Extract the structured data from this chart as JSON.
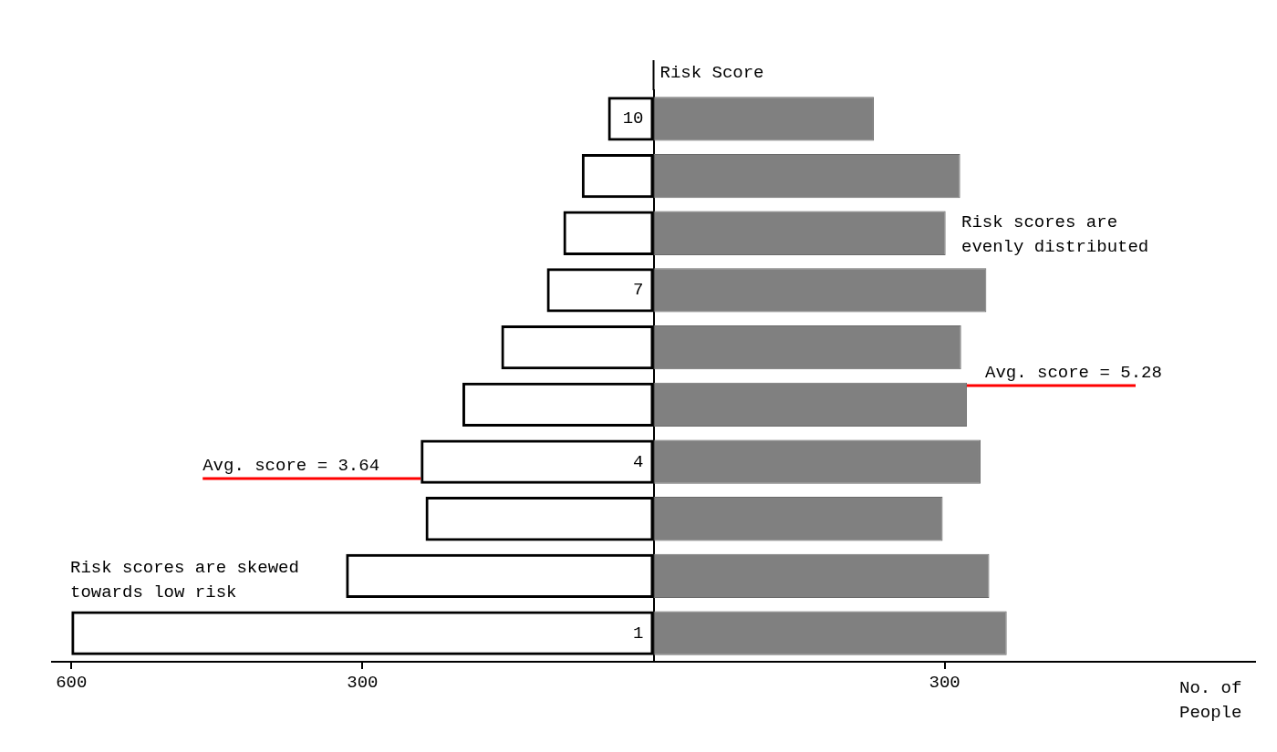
{
  "chart_data": {
    "type": "bar",
    "orientation": "horizontal",
    "stacked": true,
    "categories": [
      "10",
      null,
      null,
      "7",
      null,
      null,
      "4",
      null,
      null,
      "1"
    ],
    "series": [
      {
        "color": "#000000",
        "values": [
          -47,
          -74,
          -93,
          -110,
          -157,
          -197,
          -240,
          -235,
          -317,
          -600
        ]
      },
      {
        "color": "#808080",
        "values": [
          227,
          316,
          301,
          343,
          317,
          323,
          337,
          298,
          346,
          364
        ]
      }
    ],
    "xlim": [
      -620,
      620
    ],
    "xticks": [
      {
        "value": -600,
        "label": "600"
      },
      {
        "value": -300,
        "label": "300"
      },
      300
    ],
    "ylabel": "Risk Score",
    "xlabel": "No. of People",
    "annotations": [
      {
        "text": "Avg. score = 3.64",
        "x": -240
      },
      "Avg. score = 5.28",
      "Risk scores are skewed towards low risk",
      "Risk scores are evenly distributed"
    ]
  }
}
